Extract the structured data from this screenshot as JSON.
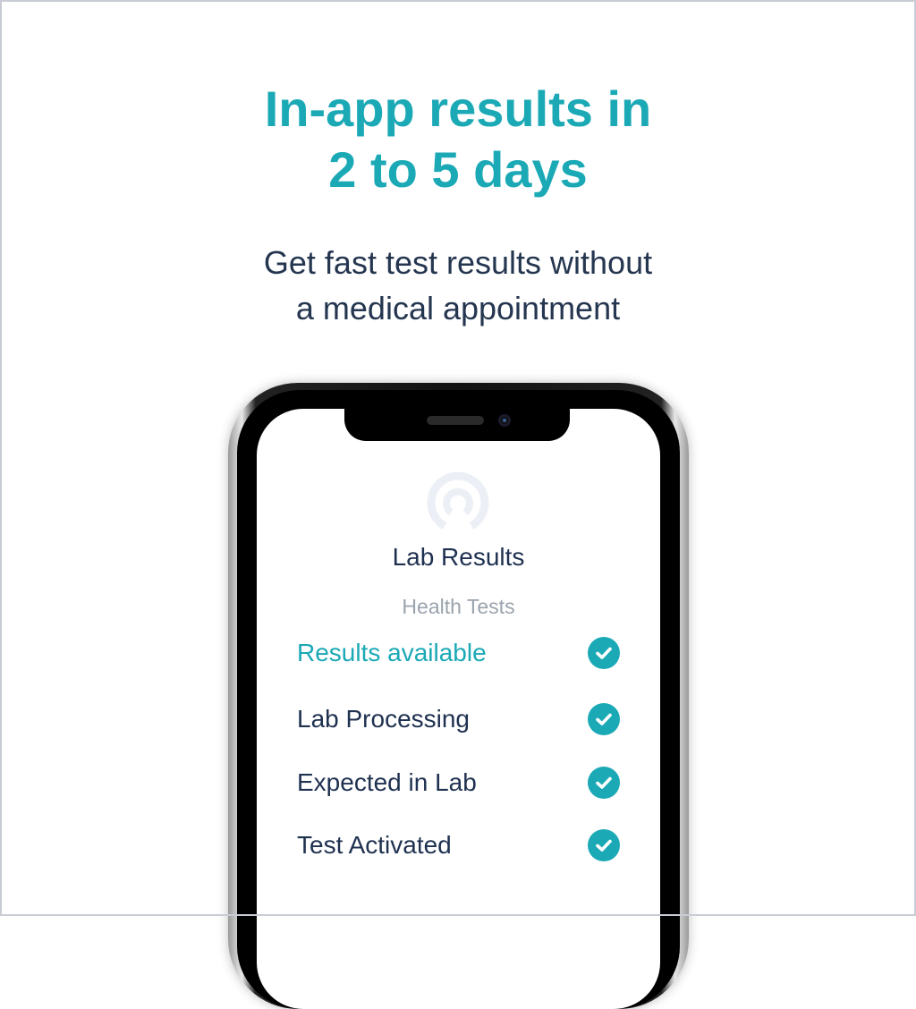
{
  "headline": {
    "line1": "In-app results in",
    "line2": "2 to 5 days"
  },
  "subheadline": {
    "line1": "Get fast test results without",
    "line2": "a medical appointment"
  },
  "app": {
    "logo_icon": "circle-arc-logo-icon",
    "title": "Lab Results",
    "subtitle": "Health Tests",
    "steps": [
      {
        "label": "Results available",
        "status": "complete",
        "highlighted": true
      },
      {
        "label": "Lab Processing",
        "status": "complete"
      },
      {
        "label": "Expected in Lab",
        "status": "complete"
      },
      {
        "label": "Test Activated",
        "status": "complete"
      }
    ]
  },
  "colors": {
    "accent": "#1ba9b6",
    "text": "#1f3150",
    "muted": "#9aa3ad"
  }
}
